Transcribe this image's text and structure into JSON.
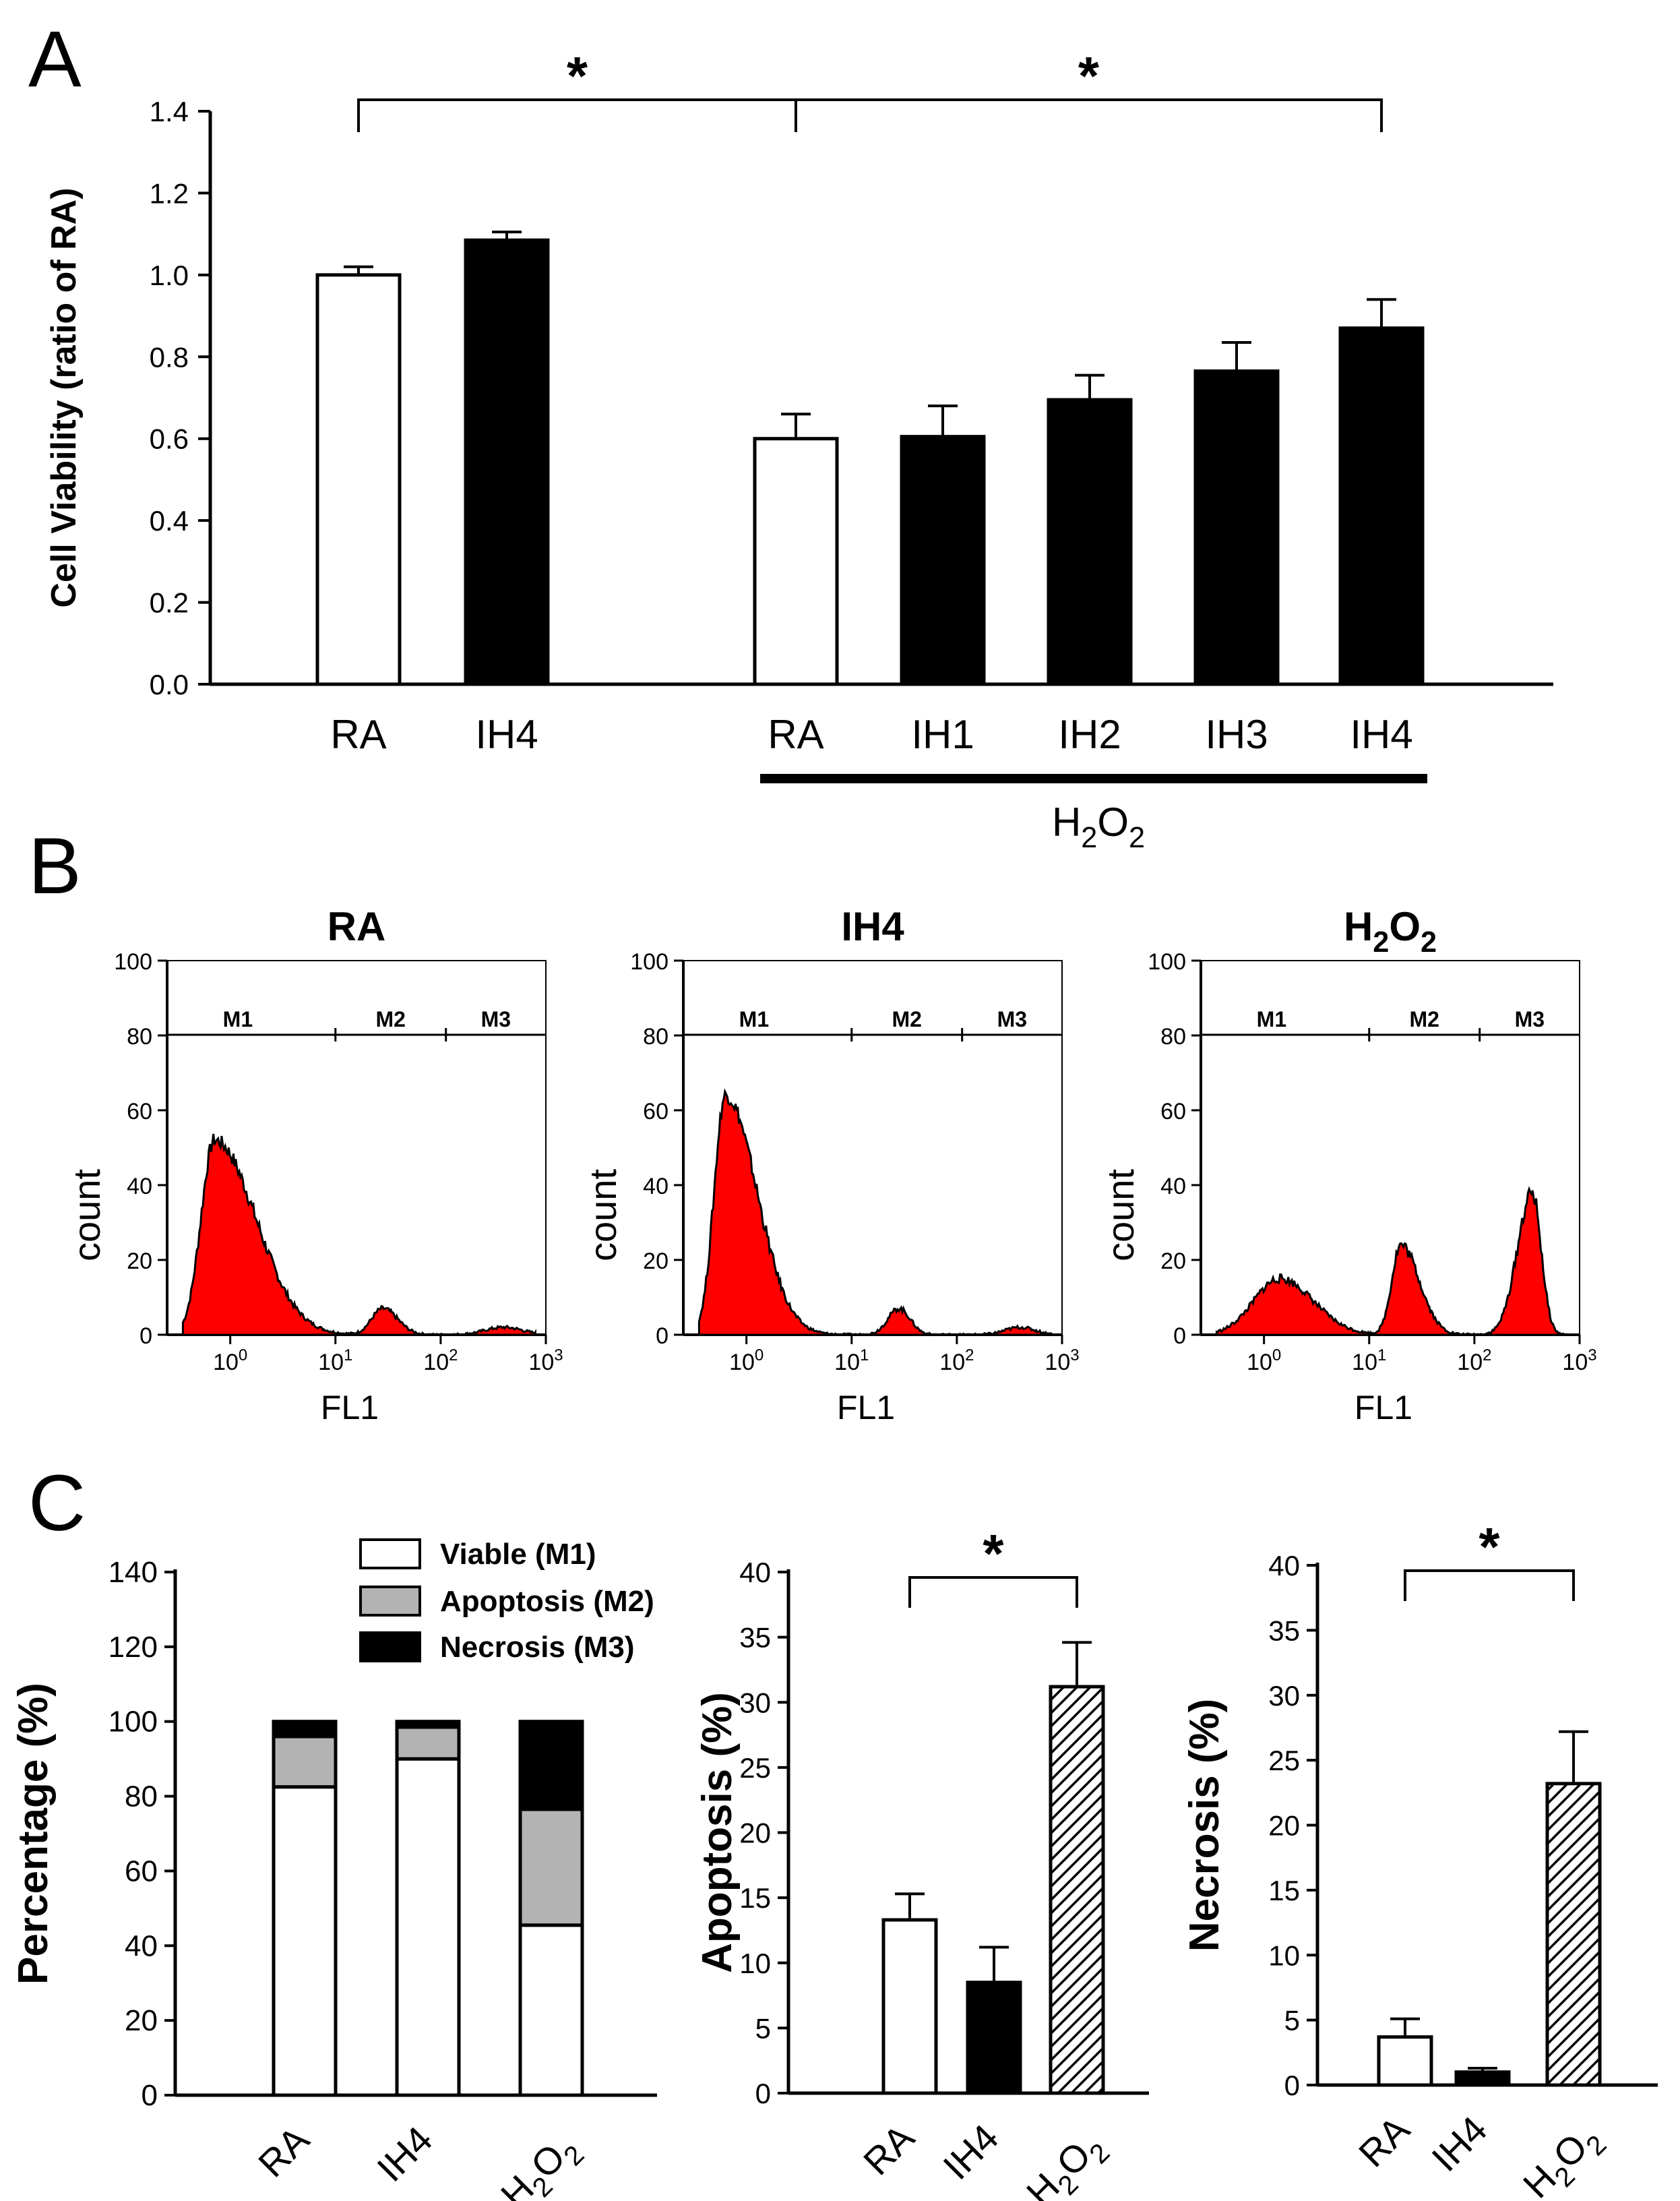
{
  "panel_labels": {
    "a": "A",
    "b": "B",
    "c": "C"
  },
  "chart_data": [
    {
      "id": "panel-a",
      "type": "bar",
      "title": "",
      "ylabel": "Cell Viability (ratio of RA)",
      "xlabel": "",
      "ylim": [
        0,
        1.4
      ],
      "yticks": [
        "0.0",
        "0.2",
        "0.4",
        "0.6",
        "0.8",
        "1.0",
        "1.2",
        "1.4"
      ],
      "categories": [
        "RA",
        "IH4",
        "RA",
        "IH1",
        "IH2",
        "IH3",
        "IH4"
      ],
      "values": [
        1.0,
        1.085,
        0.6,
        0.605,
        0.695,
        0.765,
        0.87
      ],
      "errors": [
        0.02,
        0.02,
        0.06,
        0.075,
        0.06,
        0.07,
        0.07
      ],
      "fills": [
        "white",
        "black",
        "white",
        "black",
        "black",
        "black",
        "black"
      ],
      "group_label": {
        "base": "H",
        "sub1": "2",
        "mid": "O",
        "sub2": "2"
      },
      "significance": [
        {
          "from": 0,
          "to": 2,
          "label": "*"
        },
        {
          "from": 2,
          "to": 6,
          "label": "*"
        }
      ]
    },
    {
      "id": "panel-b",
      "type": "histogram",
      "ylabel": "count",
      "xlabel": "FL1",
      "ylim": [
        0,
        100
      ],
      "yticks": [
        "0",
        "20",
        "40",
        "60",
        "80",
        "100"
      ],
      "xticks": [
        {
          "base": "10",
          "exp": "0"
        },
        {
          "base": "10",
          "exp": "1"
        },
        {
          "base": "10",
          "exp": "2"
        },
        {
          "base": "10",
          "exp": "3"
        }
      ],
      "fill_color": "#ff0000",
      "gates": [
        "M1",
        "M2",
        "M3"
      ],
      "panels": [
        {
          "title": "RA",
          "title_parts": null,
          "peaks": [
            {
              "logx": -0.15,
              "height": 52,
              "width_left": 0.18,
              "width_right": 0.55
            },
            {
              "logx": 1.45,
              "height": 7,
              "width_left": 0.15,
              "width_right": 0.2
            },
            {
              "logx": 2.6,
              "height": 2,
              "width_left": 0.25,
              "width_right": 0.25
            }
          ]
        },
        {
          "title": "IH4",
          "title_parts": null,
          "peaks": [
            {
              "logx": -0.2,
              "height": 64,
              "width_left": 0.15,
              "width_right": 0.42
            },
            {
              "logx": 1.45,
              "height": 7,
              "width_left": 0.15,
              "width_right": 0.15
            },
            {
              "logx": 2.6,
              "height": 2,
              "width_left": 0.2,
              "width_right": 0.2
            }
          ]
        },
        {
          "title": "",
          "title_parts": {
            "base": "H",
            "sub1": "2",
            "mid": "O",
            "sub2": "2"
          },
          "peaks": [
            {
              "logx": 0.15,
              "height": 15,
              "width_left": 0.35,
              "width_right": 0.45
            },
            {
              "logx": 1.3,
              "height": 24,
              "width_left": 0.12,
              "width_right": 0.25
            },
            {
              "logx": 2.55,
              "height": 38,
              "width_left": 0.2,
              "width_right": 0.12
            }
          ]
        }
      ]
    },
    {
      "id": "panel-c-stacked",
      "type": "stacked-bar",
      "ylabel": "Percentage (%)",
      "ylim": [
        0,
        140
      ],
      "yticks": [
        "0",
        "20",
        "40",
        "60",
        "80",
        "100",
        "120",
        "140"
      ],
      "categories": [
        "RA",
        "IH4",
        ""
      ],
      "category_h2o2": {
        "base": "H",
        "sub1": "2",
        "mid": "O",
        "sub2": "2"
      },
      "series": [
        {
          "name": "Viable (M1)",
          "color": "#ffffff",
          "values": [
            82.5,
            90,
            45.5
          ]
        },
        {
          "name": "Apoptosis (M2)",
          "color": "#b3b3b3",
          "values": [
            13.5,
            8.5,
            31
          ]
        },
        {
          "name": "Necrosis (M3)",
          "color": "#000000",
          "values": [
            4,
            1.5,
            23.5
          ]
        }
      ]
    },
    {
      "id": "panel-c-apoptosis",
      "type": "bar",
      "ylabel": "Apoptosis (%)",
      "ylim": [
        0,
        40
      ],
      "yticks": [
        "0",
        "5",
        "10",
        "15",
        "20",
        "25",
        "30",
        "35",
        "40"
      ],
      "categories": [
        "RA",
        "IH4",
        ""
      ],
      "category_h2o2": {
        "base": "H",
        "sub1": "2",
        "mid": "O",
        "sub2": "2"
      },
      "values": [
        13.3,
        8.5,
        31.2
      ],
      "errors": [
        2.0,
        2.7,
        3.4
      ],
      "fills": [
        "white",
        "black",
        "hatch"
      ],
      "significance": [
        {
          "from": 0,
          "to": 2,
          "label": "*"
        }
      ]
    },
    {
      "id": "panel-c-necrosis",
      "type": "bar",
      "ylabel": "Necrosis (%)",
      "ylim": [
        0,
        40
      ],
      "yticks": [
        "0",
        "5",
        "10",
        "15",
        "20",
        "25",
        "30",
        "35",
        "40"
      ],
      "categories": [
        "RA",
        "IH4",
        ""
      ],
      "category_h2o2": {
        "base": "H",
        "sub1": "2",
        "mid": "O",
        "sub2": "2"
      },
      "values": [
        3.7,
        1.0,
        23.2
      ],
      "errors": [
        1.4,
        0.3,
        4.0
      ],
      "fills": [
        "white",
        "black",
        "hatch"
      ],
      "significance": [
        {
          "from": 0,
          "to": 2,
          "label": "*"
        }
      ]
    }
  ]
}
